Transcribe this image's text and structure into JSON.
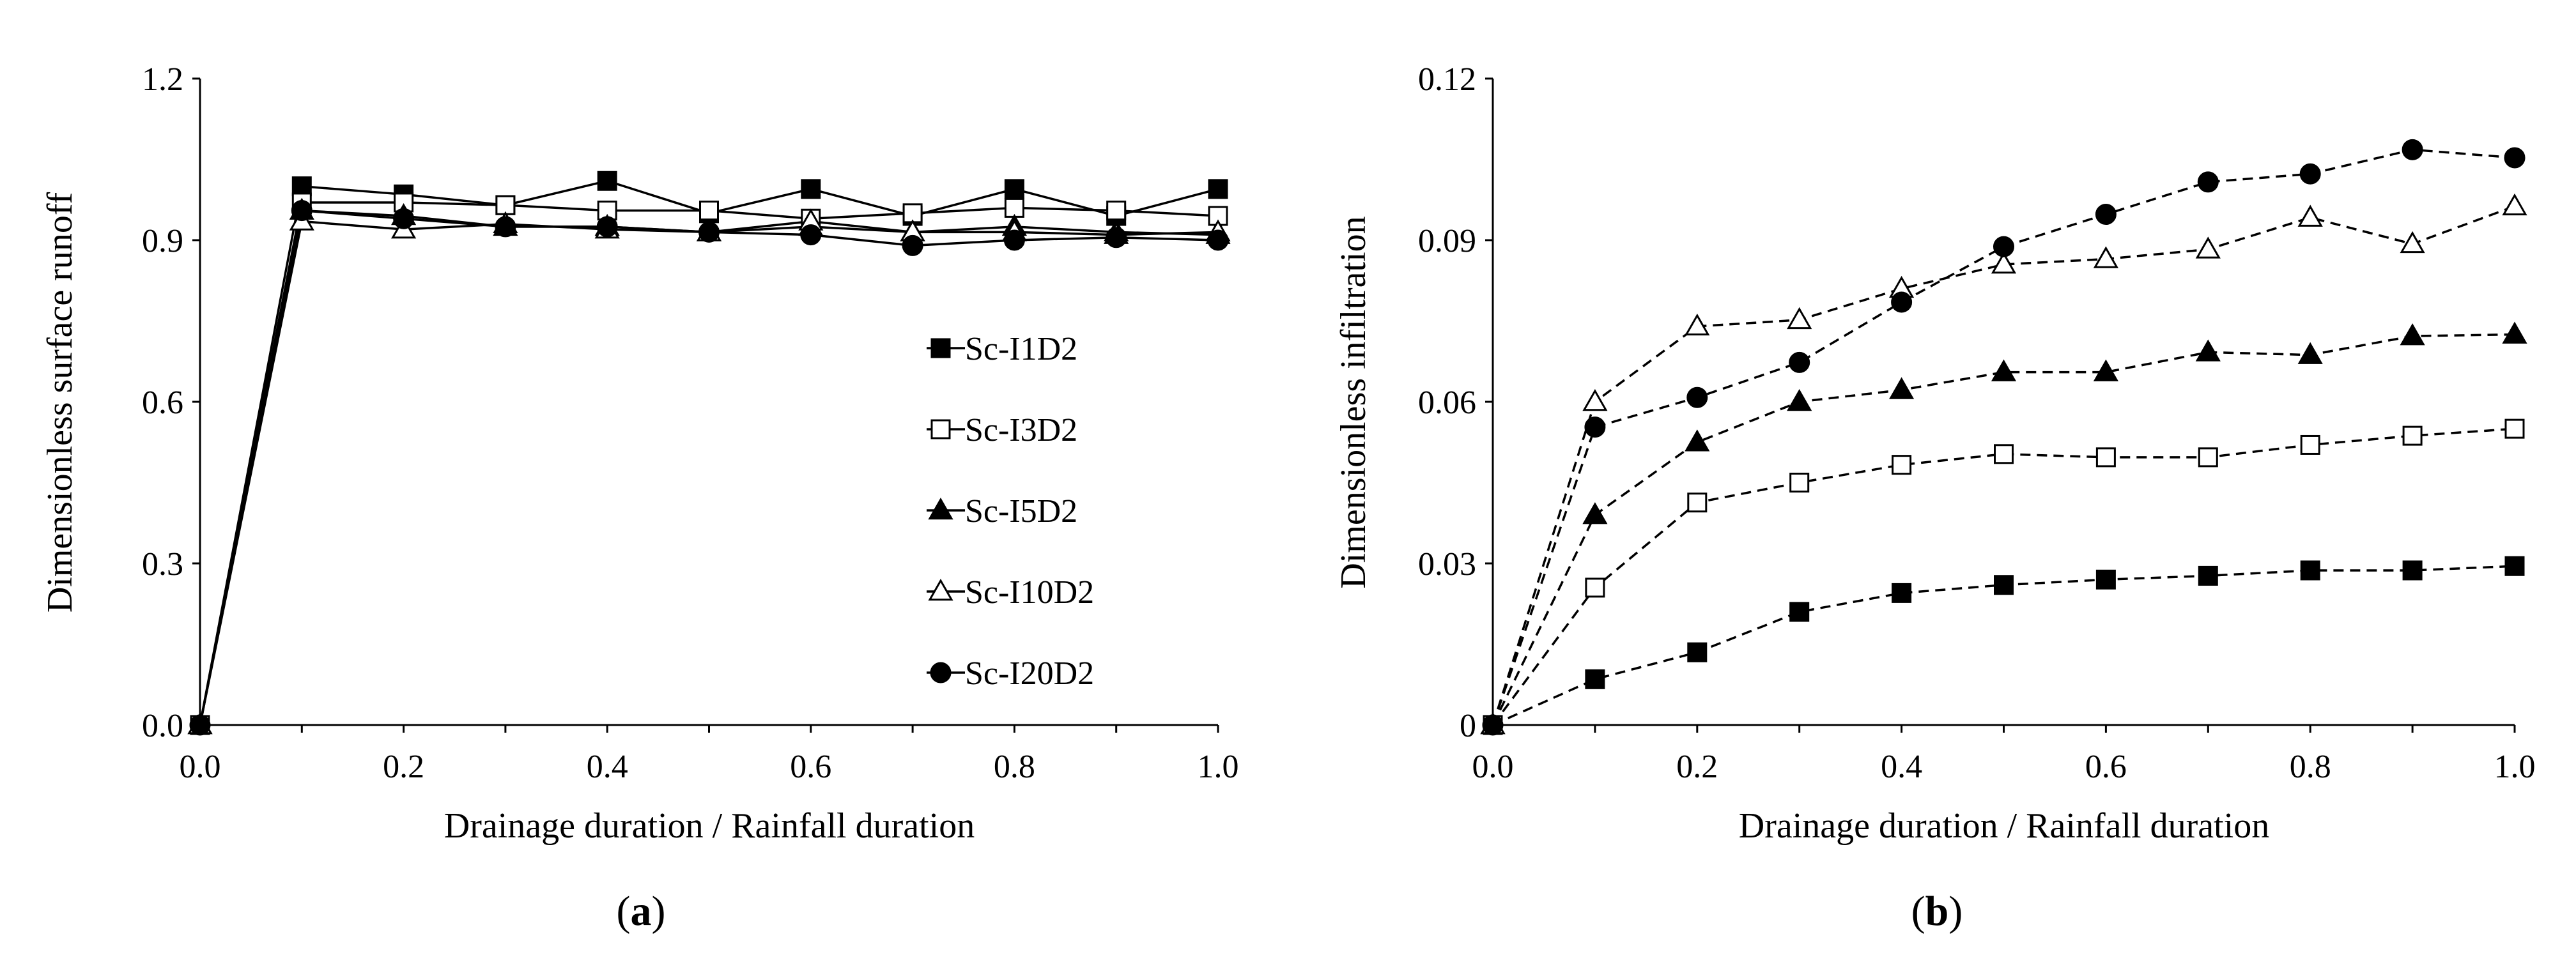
{
  "chart_data": [
    {
      "type": "line",
      "panel_label": "a",
      "xlabel": "Drainage duration / Rainfall duration",
      "ylabel": "Dimensionless surface runoff",
      "xlim": [
        0,
        1
      ],
      "ylim": [
        0,
        1.2
      ],
      "xticks": [
        "0.0",
        "0.2",
        "0.4",
        "0.6",
        "0.8",
        "1.0"
      ],
      "yticks": [
        "0.0",
        "0.3",
        "0.6",
        "0.9",
        "1.2"
      ],
      "line_style": "solid",
      "x": [
        0,
        0.1,
        0.2,
        0.3,
        0.4,
        0.5,
        0.6,
        0.7,
        0.8,
        0.9,
        1.0
      ],
      "legend_position": "right",
      "series": [
        {
          "name": "Sc-I1D2",
          "marker": "square-filled",
          "values": [
            0,
            1.0,
            0.985,
            0.965,
            1.01,
            0.95,
            0.995,
            0.945,
            0.995,
            0.945,
            0.995
          ]
        },
        {
          "name": "Sc-I3D2",
          "marker": "square-open",
          "values": [
            0,
            0.97,
            0.97,
            0.965,
            0.955,
            0.955,
            0.94,
            0.95,
            0.96,
            0.955,
            0.945
          ]
        },
        {
          "name": "Sc-I5D2",
          "marker": "triangle-filled",
          "values": [
            0,
            0.955,
            0.945,
            0.925,
            0.925,
            0.915,
            0.925,
            0.915,
            0.925,
            0.915,
            0.91
          ]
        },
        {
          "name": "Sc-I10D2",
          "marker": "triangle-open",
          "values": [
            0,
            0.935,
            0.92,
            0.93,
            0.92,
            0.915,
            0.935,
            0.915,
            0.915,
            0.91,
            0.915
          ]
        },
        {
          "name": "Sc-I20D2",
          "marker": "circle-filled",
          "values": [
            0,
            0.955,
            0.94,
            0.925,
            0.925,
            0.915,
            0.91,
            0.89,
            0.9,
            0.905,
            0.9
          ]
        }
      ]
    },
    {
      "type": "line",
      "panel_label": "b",
      "xlabel": "Drainage duration / Rainfall duration",
      "ylabel": "Dimensionless infiltration",
      "xlim": [
        0,
        1
      ],
      "ylim": [
        0,
        0.12
      ],
      "xticks": [
        "0.0",
        "0.2",
        "0.4",
        "0.6",
        "0.8",
        "1.0"
      ],
      "yticks": [
        "0",
        "0.03",
        "0.06",
        "0.09",
        "0.12"
      ],
      "line_style": "dashed",
      "x": [
        0,
        0.1,
        0.2,
        0.3,
        0.4,
        0.5,
        0.6,
        0.7,
        0.8,
        0.9,
        1.0
      ],
      "series": [
        {
          "name": "Sc-I1D2",
          "marker": "square-filled",
          "values": [
            0,
            0.0085,
            0.0135,
            0.021,
            0.0245,
            0.026,
            0.027,
            0.0277,
            0.0287,
            0.0287,
            0.0295
          ]
        },
        {
          "name": "Sc-I3D2",
          "marker": "square-open",
          "values": [
            0,
            0.0255,
            0.0413,
            0.045,
            0.0483,
            0.0503,
            0.0497,
            0.0497,
            0.052,
            0.0537,
            0.055
          ]
        },
        {
          "name": "Sc-I5D2",
          "marker": "triangle-filled",
          "values": [
            0,
            0.039,
            0.0525,
            0.06,
            0.0622,
            0.0655,
            0.0655,
            0.0692,
            0.0687,
            0.0722,
            0.0725
          ]
        },
        {
          "name": "Sc-I10D2",
          "marker": "triangle-open",
          "values": [
            0,
            0.06,
            0.074,
            0.0752,
            0.081,
            0.0855,
            0.0865,
            0.0883,
            0.0942,
            0.0893,
            0.0963
          ]
        },
        {
          "name": "Sc-I20D2",
          "marker": "circle-filled",
          "values": [
            0,
            0.0553,
            0.0608,
            0.0673,
            0.0785,
            0.0888,
            0.0948,
            0.1008,
            0.1023,
            0.1068,
            0.1053
          ]
        }
      ]
    }
  ]
}
